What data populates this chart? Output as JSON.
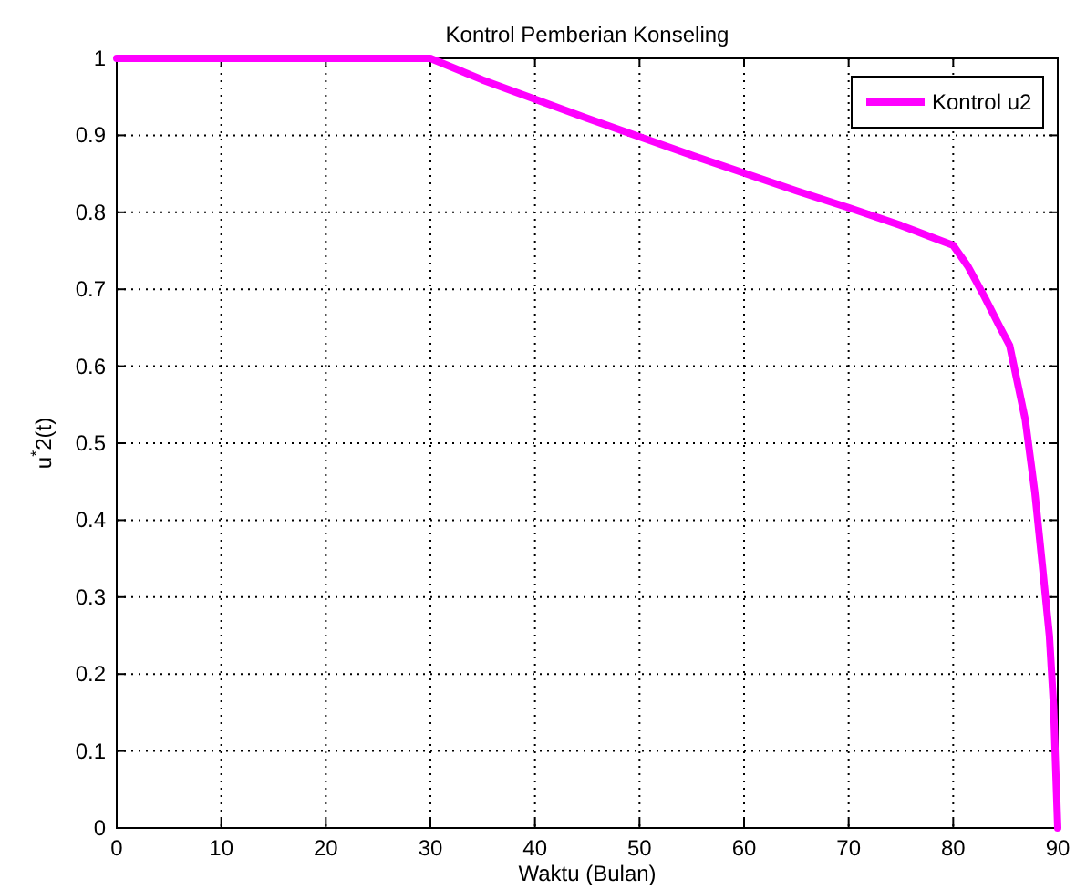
{
  "chart_data": {
    "type": "line",
    "title": "Kontrol Pemberian Konseling",
    "xlabel": "Waktu (Bulan)",
    "ylabel": "u$^{*}$2(t)",
    "series": [
      {
        "name": "Kontrol u2",
        "color": "#ff00ff",
        "x": [
          0,
          10,
          20,
          30,
          35,
          40,
          45,
          50,
          55,
          60,
          65,
          70,
          75,
          80,
          81.4,
          83,
          84.5,
          85.4,
          86.9,
          87.8,
          88.5,
          89.2,
          89.6,
          90
        ],
        "values": [
          1,
          1,
          1,
          1,
          0.972,
          0.947,
          0.922,
          0.898,
          0.874,
          0.851,
          0.828,
          0.806,
          0.783,
          0.757,
          0.73,
          0.69,
          0.65,
          0.627,
          0.53,
          0.437,
          0.345,
          0.25,
          0.158,
          0
        ]
      }
    ],
    "xlim": [
      0,
      90
    ],
    "ylim": [
      0,
      1
    ],
    "xticks": [
      0,
      10,
      20,
      30,
      40,
      50,
      60,
      70,
      80,
      90
    ],
    "yticks": [
      0,
      0.1,
      0.2,
      0.3,
      0.4,
      0.5,
      0.6,
      0.7,
      0.8,
      0.9,
      1
    ],
    "grid": true,
    "legend": "top right",
    "line_style": "solid"
  }
}
